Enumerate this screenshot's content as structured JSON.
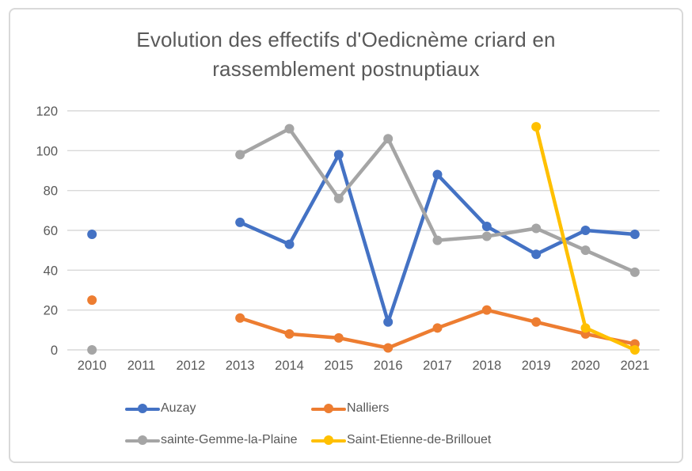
{
  "frame": {
    "background_color": "#FFFFFF",
    "border_color": "#D9D9D9"
  },
  "chart_data": {
    "type": "line",
    "title": "Evolution des effectifs d'Oedicnème criard en rassemblement postnuptiaux",
    "title_lines": [
      "Evolution des effectifs d'Oedicnème criard en",
      "rassemblement postnuptiaux"
    ],
    "categories": [
      "2010",
      "2011",
      "2012",
      "2013",
      "2014",
      "2015",
      "2016",
      "2017",
      "2018",
      "2019",
      "2020",
      "2021"
    ],
    "xlabel": "",
    "ylabel": "",
    "ylim": [
      0,
      120
    ],
    "y_ticks": [
      0,
      20,
      40,
      60,
      80,
      100,
      120
    ],
    "grid": true,
    "legend_position": "bottom",
    "text_color": "#595959",
    "gridline_color": "#D9D9D9",
    "series": [
      {
        "name": "Auzay",
        "color": "#4472C4",
        "values": [
          58,
          null,
          null,
          64,
          53,
          98,
          14,
          88,
          62,
          48,
          60,
          58
        ]
      },
      {
        "name": "Nalliers",
        "color": "#ED7D31",
        "values": [
          25,
          null,
          null,
          16,
          8,
          6,
          1,
          11,
          20,
          14,
          8,
          3
        ]
      },
      {
        "name": "sainte-Gemme-la-Plaine",
        "color": "#A5A5A5",
        "values": [
          0,
          null,
          null,
          98,
          111,
          76,
          106,
          55,
          57,
          61,
          50,
          39
        ]
      },
      {
        "name": "Saint-Etienne-de-Brillouet",
        "color": "#FFC000",
        "values": [
          null,
          null,
          null,
          null,
          null,
          null,
          null,
          null,
          null,
          112,
          11,
          0
        ]
      }
    ]
  }
}
